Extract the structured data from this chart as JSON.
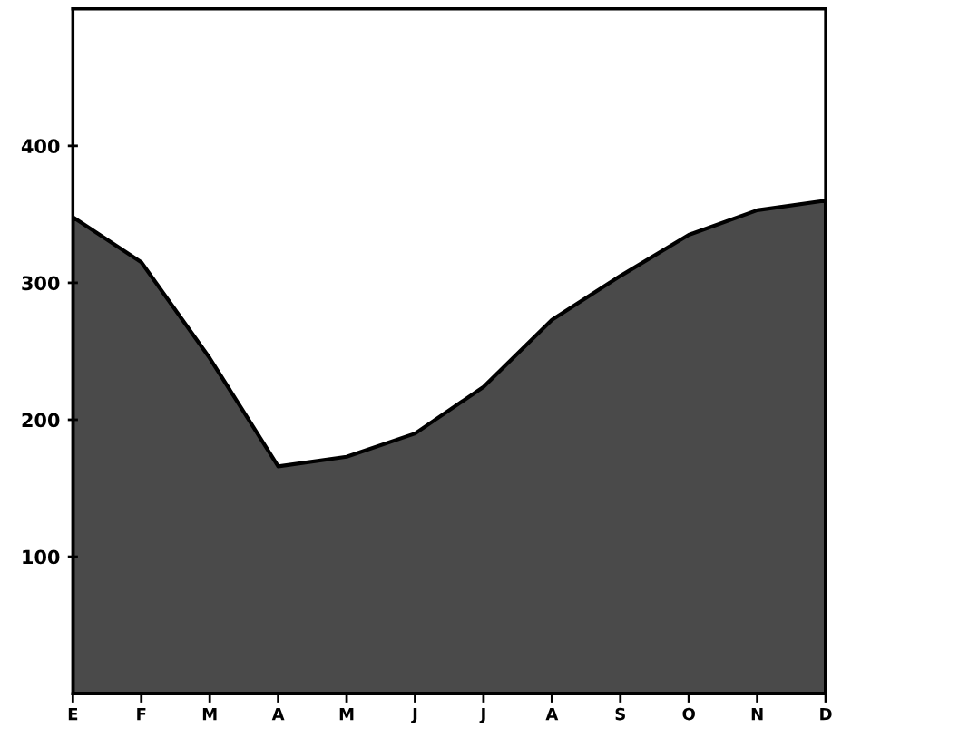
{
  "chart_data": {
    "type": "area",
    "categories": [
      "E",
      "F",
      "M",
      "A",
      "M",
      "J",
      "J",
      "A",
      "S",
      "O",
      "N",
      "D"
    ],
    "series": [
      {
        "color": "#4a4a4a",
        "values": [
          348,
          315,
          245,
          166,
          173,
          190,
          224,
          273,
          305,
          335,
          353,
          360
        ]
      }
    ],
    "ylim": [
      0,
      500
    ],
    "yticks": [
      100,
      200,
      300,
      400
    ],
    "grid": false,
    "legend": false
  }
}
